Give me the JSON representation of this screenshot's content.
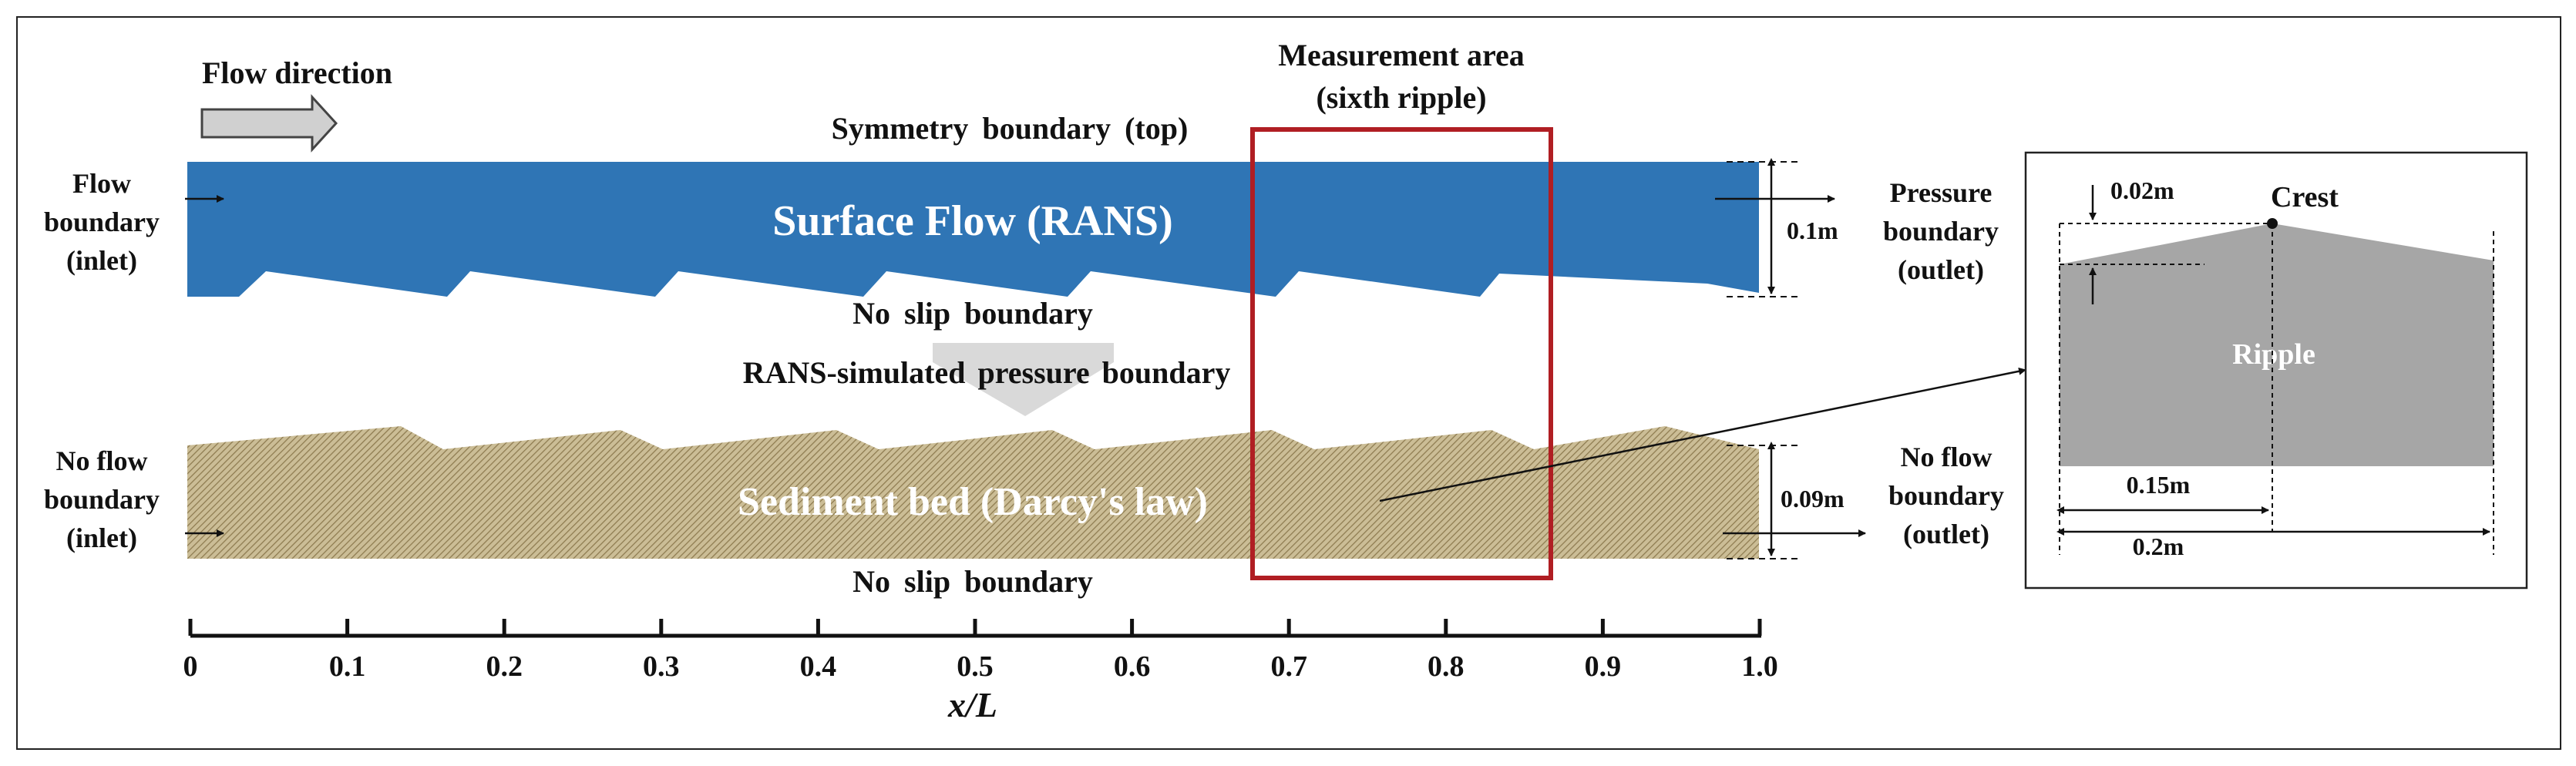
{
  "labels": {
    "flow_direction": "Flow direction",
    "measurement_line1": "Measurement area",
    "measurement_line2": "(sixth ripple)",
    "symmetry_top": "Symmetry boundary (top)",
    "surface_flow": "Surface Flow (RANS)",
    "no_slip_top": "No slip boundary",
    "rans_pressure": "RANS-simulated pressure boundary",
    "sediment_bed": "Sediment bed (Darcy's law)",
    "no_slip_bottom": "No slip boundary",
    "flow_bnd_1": "Flow",
    "flow_bnd_2": "boundary",
    "flow_bnd_3": "(inlet)",
    "press_bnd_1": "Pressure",
    "press_bnd_2": "boundary",
    "press_bnd_3": "(outlet)",
    "noflow_in_1": "No flow",
    "noflow_in_2": "boundary",
    "noflow_in_3": "(inlet)",
    "noflow_out_1": "No flow",
    "noflow_out_2": "boundary",
    "noflow_out_3": "(outlet)",
    "dim_flow": "0.1m",
    "dim_bed": "0.09m",
    "xlabel": "x/L"
  },
  "axis": {
    "ticks": [
      "0",
      "0.1",
      "0.2",
      "0.3",
      "0.4",
      "0.5",
      "0.6",
      "0.7",
      "0.8",
      "0.9",
      "1.0"
    ]
  },
  "inset": {
    "crest": "Crest",
    "ripple": "Ripple",
    "height": "0.02m",
    "crest_dist": "0.15m",
    "length": "0.2m"
  },
  "colors": {
    "surface_flow": "#2f75b5",
    "sediment": "#b8a67c",
    "measurement_box": "#b01e23",
    "ripple": "#a6a6a6"
  }
}
